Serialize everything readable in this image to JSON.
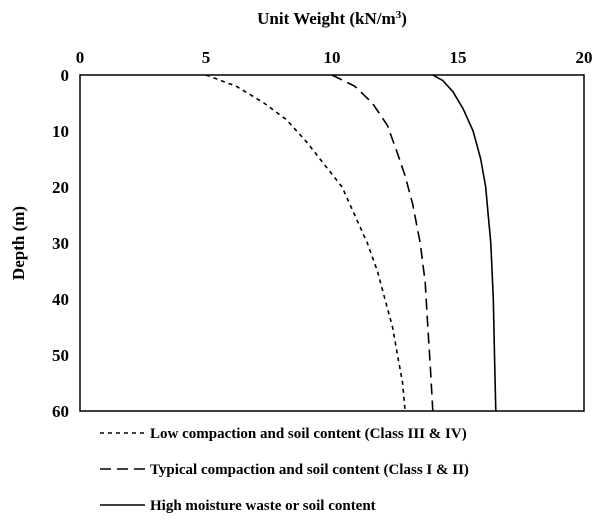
{
  "chart_data": {
    "type": "line",
    "title": "Unit Weight (kN/m³)",
    "xlabel": "Unit Weight (kN/m³)",
    "ylabel": "Depth (m)",
    "xlim": [
      0,
      20
    ],
    "ylim": [
      0,
      60
    ],
    "x_axis_position": "top",
    "y_axis_inverted": true,
    "x_ticks": [
      0,
      5,
      10,
      15,
      20
    ],
    "y_ticks": [
      0,
      10,
      20,
      30,
      40,
      50,
      60
    ],
    "grid": false,
    "legend_position": "bottom",
    "series": [
      {
        "name": "Low compaction and soil content (Class III & IV)",
        "style": "dotted",
        "color": "#000000",
        "points": [
          [
            5.0,
            0
          ],
          [
            6.2,
            2
          ],
          [
            7.3,
            5
          ],
          [
            8.2,
            8
          ],
          [
            9.0,
            12
          ],
          [
            9.7,
            16
          ],
          [
            10.4,
            20
          ],
          [
            10.9,
            25
          ],
          [
            11.4,
            30
          ],
          [
            11.8,
            35
          ],
          [
            12.1,
            40
          ],
          [
            12.4,
            45
          ],
          [
            12.6,
            50
          ],
          [
            12.8,
            55
          ],
          [
            12.9,
            60
          ]
        ]
      },
      {
        "name": "Typical compaction and soil content (Class I & II)",
        "style": "dashed",
        "color": "#000000",
        "points": [
          [
            10.0,
            0
          ],
          [
            10.9,
            2
          ],
          [
            11.6,
            5
          ],
          [
            12.2,
            9
          ],
          [
            12.6,
            14
          ],
          [
            12.9,
            18
          ],
          [
            13.2,
            23
          ],
          [
            13.5,
            30
          ],
          [
            13.7,
            37
          ],
          [
            13.8,
            45
          ],
          [
            13.9,
            52
          ],
          [
            14.0,
            60
          ]
        ]
      },
      {
        "name": "High moisture waste or soil content",
        "style": "solid",
        "color": "#000000",
        "points": [
          [
            14.0,
            0
          ],
          [
            14.4,
            1
          ],
          [
            14.8,
            3
          ],
          [
            15.2,
            6
          ],
          [
            15.6,
            10
          ],
          [
            15.9,
            15
          ],
          [
            16.1,
            20
          ],
          [
            16.2,
            25
          ],
          [
            16.3,
            30
          ],
          [
            16.4,
            40
          ],
          [
            16.45,
            50
          ],
          [
            16.5,
            60
          ]
        ]
      }
    ]
  }
}
